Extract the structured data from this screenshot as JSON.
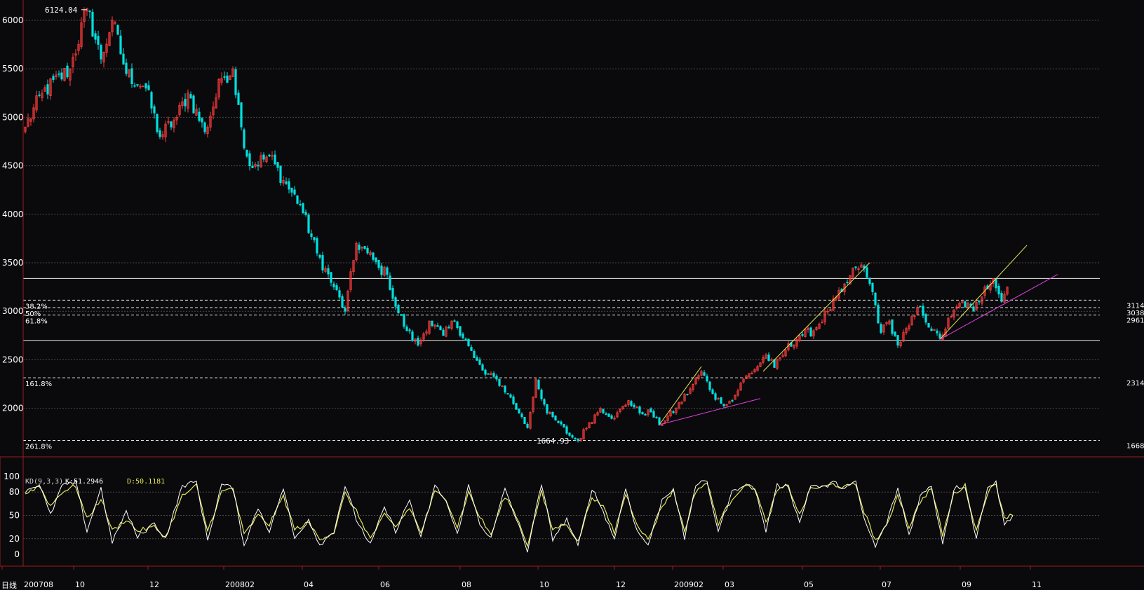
{
  "chart_data": {
    "type": "candlestick",
    "period_label": "日线",
    "colors": {
      "up": "#ff3c3c",
      "down": "#00e0e0",
      "grid": "#4a4a4a",
      "axis": "#9b1c1c",
      "yellow": "#e6e65a",
      "magenta": "#e040e0"
    },
    "price": {
      "ylim": [
        1600,
        6200
      ],
      "yticks": [
        "6000",
        "5500",
        "5000",
        "4500",
        "4000",
        "3500",
        "3000",
        "2500",
        "2000"
      ],
      "xticks": [
        "200708",
        "10",
        "12",
        "200802",
        "04",
        "06",
        "08",
        "10",
        "12",
        "200902",
        "03",
        "05",
        "07",
        "09",
        "11"
      ],
      "points": [
        [
          0,
          4900
        ],
        [
          6,
          5250
        ],
        [
          16,
          5500
        ],
        [
          22,
          6124
        ],
        [
          27,
          5600
        ],
        [
          31,
          6000
        ],
        [
          36,
          5450
        ],
        [
          43,
          5300
        ],
        [
          48,
          4800
        ],
        [
          54,
          5000
        ],
        [
          58,
          5250
        ],
        [
          64,
          4850
        ],
        [
          70,
          5400
        ],
        [
          74,
          5500
        ],
        [
          77,
          4900
        ],
        [
          80,
          4500
        ],
        [
          87,
          4600
        ],
        [
          92,
          4350
        ],
        [
          98,
          4100
        ],
        [
          104,
          3600
        ],
        [
          110,
          3250
        ],
        [
          114,
          3000
        ],
        [
          118,
          3700
        ],
        [
          122,
          3600
        ],
        [
          126,
          3450
        ],
        [
          129,
          3380
        ],
        [
          132,
          3050
        ],
        [
          136,
          2800
        ],
        [
          140,
          2650
        ],
        [
          144,
          2900
        ],
        [
          149,
          2750
        ],
        [
          153,
          2900
        ],
        [
          157,
          2700
        ],
        [
          160,
          2520
        ],
        [
          164,
          2350
        ],
        [
          168,
          2300
        ],
        [
          172,
          2150
        ],
        [
          176,
          1950
        ],
        [
          179,
          1800
        ],
        [
          182,
          2300
        ],
        [
          186,
          1950
        ],
        [
          190,
          1850
        ],
        [
          194,
          1720
        ],
        [
          197,
          1665
        ],
        [
          201,
          1850
        ],
        [
          205,
          2000
        ],
        [
          210,
          1900
        ],
        [
          215,
          2080
        ],
        [
          219,
          1950
        ],
        [
          223,
          1960
        ],
        [
          226,
          1830
        ],
        [
          232,
          2000
        ],
        [
          237,
          2200
        ],
        [
          241,
          2380
        ],
        [
          245,
          2150
        ],
        [
          248,
          2050
        ],
        [
          252,
          2080
        ],
        [
          256,
          2300
        ],
        [
          260,
          2400
        ],
        [
          264,
          2550
        ],
        [
          267,
          2420
        ],
        [
          271,
          2600
        ],
        [
          276,
          2750
        ],
        [
          281,
          2800
        ],
        [
          286,
          3000
        ],
        [
          291,
          3200
        ],
        [
          296,
          3450
        ],
        [
          298,
          3478
        ],
        [
          302,
          3200
        ],
        [
          305,
          2780
        ],
        [
          308,
          2900
        ],
        [
          311,
          2650
        ],
        [
          315,
          2850
        ],
        [
          319,
          3050
        ],
        [
          323,
          2800
        ],
        [
          326,
          2720
        ],
        [
          330,
          2950
        ],
        [
          334,
          3100
        ],
        [
          338,
          3000
        ],
        [
          342,
          3250
        ],
        [
          345,
          3338
        ],
        [
          348,
          3100
        ],
        [
          350,
          3250
        ]
      ],
      "max_label": "6124.04",
      "min_label": "1664.93",
      "horizontal_lines": [
        3338,
        2700
      ],
      "fib_levels": [
        {
          "pct": "38.2%",
          "price": 3114,
          "label": "3114"
        },
        {
          "pct": "50%",
          "price": 3038,
          "label": "3038"
        },
        {
          "pct": "61.8%",
          "price": 2961,
          "label": "2961"
        },
        {
          "pct": "161.8%",
          "price": 2314,
          "label": "2314"
        },
        {
          "pct": "261.8%",
          "price": 1668,
          "label": "1668"
        }
      ],
      "trendlines": [
        {
          "color": "yellow",
          "from": [
            226,
            1830
          ],
          "to": [
            241,
            2430
          ]
        },
        {
          "color": "magenta",
          "from": [
            226,
            1830
          ],
          "to": [
            262,
            2100
          ]
        },
        {
          "color": "yellow",
          "from": [
            263,
            2380
          ],
          "to": [
            301,
            3500
          ]
        },
        {
          "color": "yellow",
          "from": [
            326,
            2710
          ],
          "to": [
            357,
            3680
          ]
        },
        {
          "color": "magenta",
          "from": [
            326,
            2710
          ],
          "to": [
            368,
            3380
          ]
        }
      ]
    },
    "kd": {
      "label": "KD(9,3,3)",
      "k_label": "K:51.2946",
      "d_label": "D:50.1181",
      "yticks": [
        "100",
        "80",
        "50",
        "20",
        "0"
      ],
      "ylim": [
        0,
        100
      ],
      "k_points": [
        [
          0,
          82
        ],
        [
          5,
          90
        ],
        [
          9,
          50
        ],
        [
          13,
          88
        ],
        [
          18,
          92
        ],
        [
          22,
          30
        ],
        [
          27,
          85
        ],
        [
          31,
          15
        ],
        [
          36,
          55
        ],
        [
          40,
          22
        ],
        [
          46,
          40
        ],
        [
          50,
          20
        ],
        [
          56,
          88
        ],
        [
          61,
          93
        ],
        [
          65,
          18
        ],
        [
          70,
          90
        ],
        [
          74,
          85
        ],
        [
          78,
          12
        ],
        [
          83,
          60
        ],
        [
          87,
          30
        ],
        [
          92,
          85
        ],
        [
          96,
          20
        ],
        [
          101,
          45
        ],
        [
          105,
          12
        ],
        [
          110,
          30
        ],
        [
          114,
          88
        ],
        [
          118,
          45
        ],
        [
          123,
          12
        ],
        [
          128,
          60
        ],
        [
          132,
          30
        ],
        [
          137,
          70
        ],
        [
          141,
          20
        ],
        [
          146,
          88
        ],
        [
          150,
          68
        ],
        [
          154,
          25
        ],
        [
          158,
          88
        ],
        [
          162,
          40
        ],
        [
          166,
          20
        ],
        [
          171,
          85
        ],
        [
          175,
          45
        ],
        [
          179,
          5
        ],
        [
          184,
          90
        ],
        [
          188,
          20
        ],
        [
          193,
          45
        ],
        [
          197,
          10
        ],
        [
          202,
          85
        ],
        [
          206,
          55
        ],
        [
          210,
          20
        ],
        [
          214,
          85
        ],
        [
          218,
          30
        ],
        [
          222,
          12
        ],
        [
          227,
          70
        ],
        [
          231,
          85
        ],
        [
          235,
          20
        ],
        [
          239,
          90
        ],
        [
          243,
          93
        ],
        [
          247,
          30
        ],
        [
          252,
          80
        ],
        [
          256,
          90
        ],
        [
          260,
          85
        ],
        [
          264,
          30
        ],
        [
          268,
          88
        ],
        [
          272,
          88
        ],
        [
          276,
          40
        ],
        [
          280,
          90
        ],
        [
          284,
          85
        ],
        [
          288,
          92
        ],
        [
          292,
          85
        ],
        [
          296,
          92
        ],
        [
          299,
          45
        ],
        [
          303,
          10
        ],
        [
          307,
          40
        ],
        [
          311,
          85
        ],
        [
          315,
          25
        ],
        [
          319,
          75
        ],
        [
          323,
          88
        ],
        [
          327,
          15
        ],
        [
          331,
          85
        ],
        [
          335,
          88
        ],
        [
          339,
          20
        ],
        [
          343,
          88
        ],
        [
          346,
          92
        ],
        [
          349,
          38
        ],
        [
          352,
          50
        ]
      ],
      "d_points": [
        [
          0,
          78
        ],
        [
          5,
          88
        ],
        [
          9,
          62
        ],
        [
          13,
          80
        ],
        [
          18,
          88
        ],
        [
          22,
          45
        ],
        [
          27,
          72
        ],
        [
          31,
          30
        ],
        [
          36,
          45
        ],
        [
          40,
          30
        ],
        [
          46,
          35
        ],
        [
          50,
          22
        ],
        [
          56,
          75
        ],
        [
          61,
          88
        ],
        [
          65,
          30
        ],
        [
          70,
          80
        ],
        [
          74,
          85
        ],
        [
          78,
          25
        ],
        [
          83,
          50
        ],
        [
          87,
          38
        ],
        [
          92,
          75
        ],
        [
          96,
          32
        ],
        [
          101,
          40
        ],
        [
          105,
          20
        ],
        [
          110,
          28
        ],
        [
          114,
          78
        ],
        [
          118,
          55
        ],
        [
          123,
          20
        ],
        [
          128,
          50
        ],
        [
          132,
          35
        ],
        [
          137,
          60
        ],
        [
          141,
          28
        ],
        [
          146,
          80
        ],
        [
          150,
          72
        ],
        [
          154,
          35
        ],
        [
          158,
          80
        ],
        [
          162,
          48
        ],
        [
          166,
          25
        ],
        [
          171,
          75
        ],
        [
          175,
          50
        ],
        [
          179,
          12
        ],
        [
          184,
          80
        ],
        [
          188,
          32
        ],
        [
          193,
          40
        ],
        [
          197,
          15
        ],
        [
          202,
          75
        ],
        [
          206,
          60
        ],
        [
          210,
          28
        ],
        [
          214,
          78
        ],
        [
          218,
          40
        ],
        [
          222,
          18
        ],
        [
          227,
          62
        ],
        [
          231,
          82
        ],
        [
          235,
          30
        ],
        [
          239,
          82
        ],
        [
          243,
          92
        ],
        [
          247,
          40
        ],
        [
          252,
          72
        ],
        [
          256,
          88
        ],
        [
          260,
          86
        ],
        [
          264,
          40
        ],
        [
          268,
          82
        ],
        [
          272,
          88
        ],
        [
          276,
          50
        ],
        [
          280,
          85
        ],
        [
          284,
          86
        ],
        [
          288,
          90
        ],
        [
          292,
          86
        ],
        [
          296,
          90
        ],
        [
          299,
          55
        ],
        [
          303,
          18
        ],
        [
          307,
          35
        ],
        [
          311,
          78
        ],
        [
          315,
          35
        ],
        [
          319,
          68
        ],
        [
          323,
          85
        ],
        [
          327,
          25
        ],
        [
          331,
          78
        ],
        [
          335,
          88
        ],
        [
          339,
          30
        ],
        [
          343,
          80
        ],
        [
          346,
          90
        ],
        [
          349,
          48
        ],
        [
          352,
          50
        ]
      ]
    }
  }
}
